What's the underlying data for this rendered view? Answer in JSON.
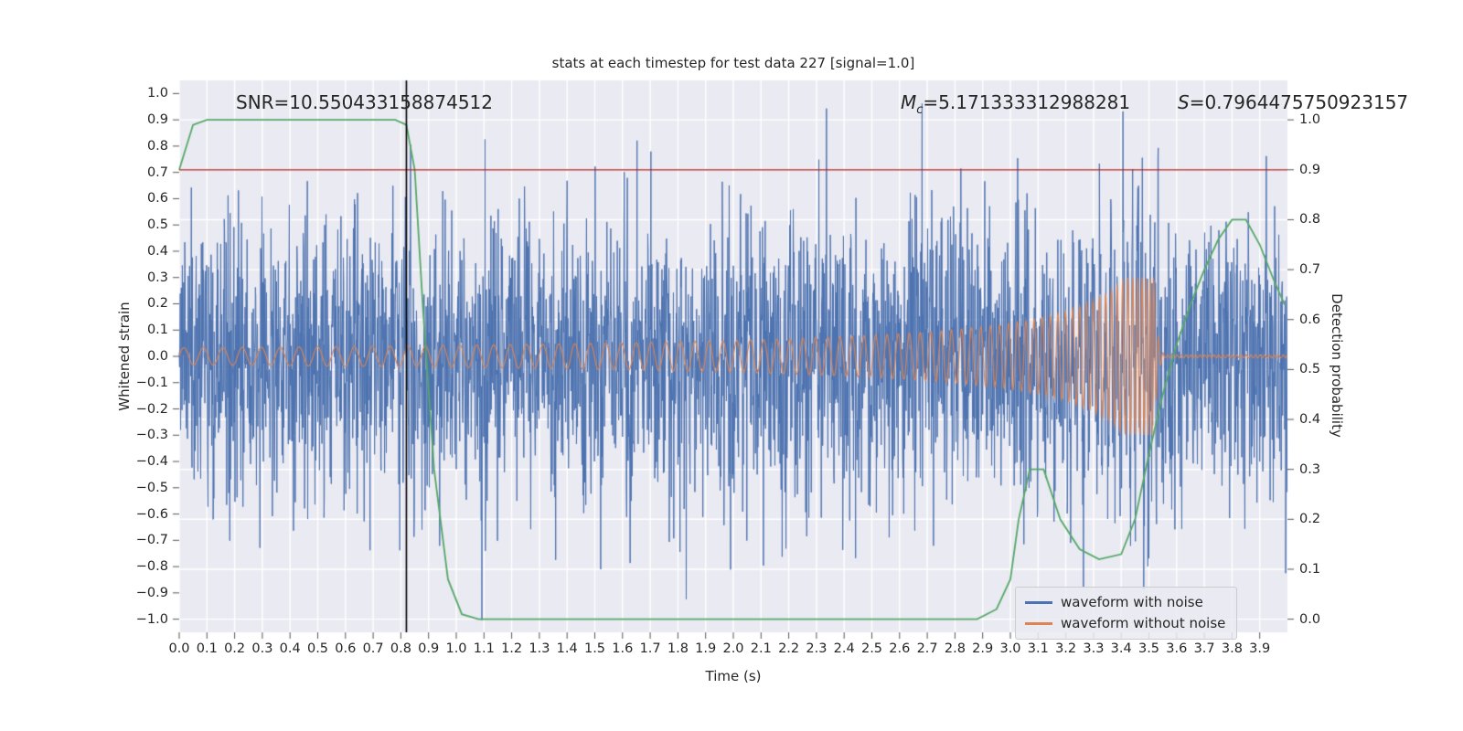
{
  "chart_data": {
    "type": "line",
    "title": "stats at each timestep for test data 227 [signal=1.0]",
    "xlabel": "Time (s)",
    "ylabel_left": "Whitened strain",
    "ylabel_right": "Detection probability",
    "plot_bg": "#eaeaf2",
    "grid_color": "#ffffff",
    "tick_color": "#555555",
    "xlim": [
      0.0,
      4.0
    ],
    "ylim_left": [
      -1.05,
      1.05
    ],
    "ylim_right": [
      0.0,
      1.0
    ],
    "x_ticks": [
      "0.0",
      "0.1",
      "0.2",
      "0.3",
      "0.4",
      "0.5",
      "0.6",
      "0.7",
      "0.8",
      "0.9",
      "1.0",
      "1.1",
      "1.2",
      "1.3",
      "1.4",
      "1.5",
      "1.6",
      "1.7",
      "1.8",
      "1.9",
      "2.0",
      "2.1",
      "2.2",
      "2.3",
      "2.4",
      "2.5",
      "2.6",
      "2.7",
      "2.8",
      "2.9",
      "3.0",
      "3.1",
      "3.2",
      "3.3",
      "3.4",
      "3.5",
      "3.6",
      "3.7",
      "3.8",
      "3.9"
    ],
    "left_ticks": [
      "1.0",
      "0.9",
      "0.8",
      "0.7",
      "0.6",
      "0.5",
      "0.4",
      "0.3",
      "0.2",
      "0.1",
      "0.0",
      "−0.1",
      "−0.2",
      "−0.3",
      "−0.4",
      "−0.5",
      "−0.6",
      "−0.7",
      "−0.8",
      "−0.9",
      "−1.0"
    ],
    "right_ticks": [
      "1.0",
      "0.9",
      "0.8",
      "0.7",
      "0.6",
      "0.5",
      "0.4",
      "0.3",
      "0.2",
      "0.1",
      "0.0"
    ],
    "annotations": {
      "snr": "SNR=10.550433158874512",
      "mc_symbol": "M",
      "mc_subscript": "c",
      "mc_value": "=5.171333312988281",
      "s_symbol": "S",
      "s_value": "=0.7964475750923157"
    },
    "threshold_line": {
      "axis": "right",
      "y": 0.9,
      "color": "#b22222"
    },
    "event_line": {
      "x": 0.82,
      "color": "#000000"
    },
    "legend_position": "lower right",
    "series": [
      {
        "name": "waveform with noise",
        "color": "#4c72b0",
        "axis": "left",
        "kind": "noise_plus_signal",
        "noise_std": 0.27,
        "noise_clip": 1.03,
        "seed": 227,
        "n_points": 3200
      },
      {
        "name": "waveform without noise",
        "color": "#dd8452",
        "axis": "left",
        "kind": "chirp",
        "chirp": {
          "f0": 14,
          "t_ref": 3.6,
          "freq_exp": 0.45,
          "amp0": 0.033,
          "amp_exp": 0.75,
          "amp_max": 0.3,
          "merger_t": 3.52,
          "ring_f": 60,
          "ring_tau": 0.01,
          "residual_amp": 0.006
        }
      },
      {
        "name": "detection probability",
        "color": "#55a868",
        "axis": "right",
        "x": [
          0.0,
          0.05,
          0.1,
          0.78,
          0.82,
          0.85,
          0.88,
          0.92,
          0.97,
          1.02,
          1.08,
          2.88,
          2.95,
          3.0,
          3.03,
          3.07,
          3.12,
          3.18,
          3.25,
          3.32,
          3.4,
          3.45,
          3.5,
          3.55,
          3.6,
          3.65,
          3.7,
          3.75,
          3.8,
          3.85,
          3.9,
          3.95,
          3.99
        ],
        "y": [
          0.9,
          0.99,
          1.0,
          1.0,
          0.99,
          0.9,
          0.62,
          0.3,
          0.08,
          0.01,
          0.0,
          0.0,
          0.02,
          0.08,
          0.2,
          0.3,
          0.3,
          0.2,
          0.14,
          0.12,
          0.13,
          0.2,
          0.33,
          0.45,
          0.55,
          0.63,
          0.7,
          0.76,
          0.8,
          0.8,
          0.75,
          0.68,
          0.63
        ]
      }
    ]
  }
}
